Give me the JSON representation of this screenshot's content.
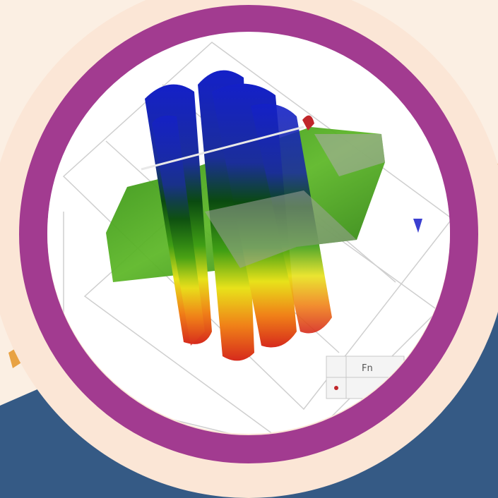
{
  "inset_label": "Fn"
}
